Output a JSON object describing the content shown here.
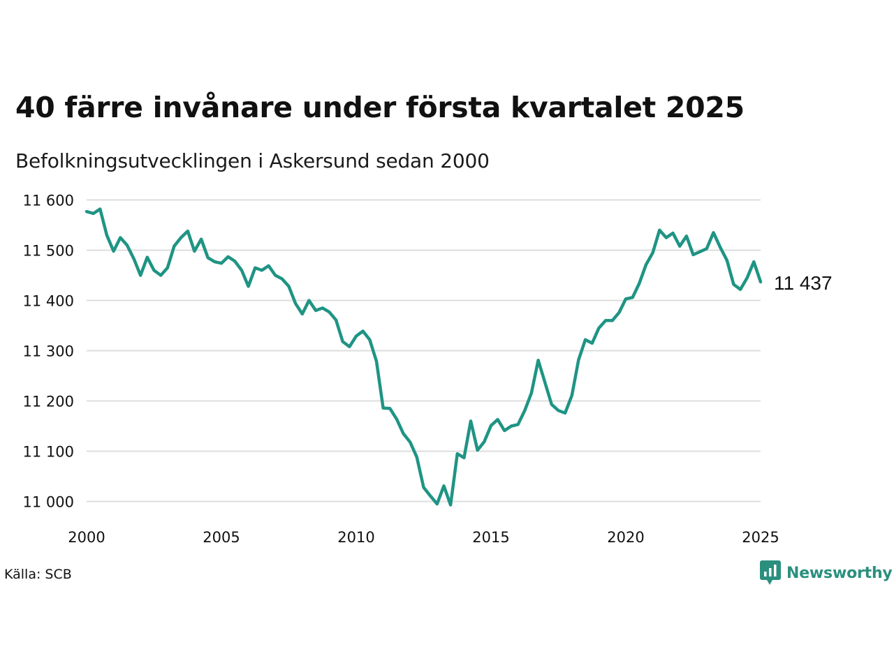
{
  "title": "40 färre invånare under första kvartalet 2025",
  "subtitle": "Befolkningsutvecklingen i Askersund sedan 2000",
  "source": "Källa: SCB",
  "brand": {
    "name": "Newsworthy",
    "icon": "newsworthy-logo-icon",
    "color": "#2b8f7e"
  },
  "chart_data": {
    "type": "line",
    "title": "40 färre invånare under första kvartalet 2025",
    "subtitle": "Befolkningsutvecklingen i Askersund sedan 2000",
    "xlabel": "",
    "ylabel": "",
    "xlim": [
      2000,
      2025
    ],
    "ylim": [
      11000,
      11600
    ],
    "x_ticks": [
      2000,
      2005,
      2010,
      2015,
      2020,
      2025
    ],
    "x_tick_labels": [
      "2000",
      "2005",
      "2010",
      "2015",
      "2020",
      "2025"
    ],
    "y_ticks": [
      11000,
      11100,
      11200,
      11300,
      11400,
      11500,
      11600
    ],
    "y_tick_labels": [
      "11 000",
      "11 100",
      "11 200",
      "11 300",
      "11 400",
      "11 500",
      "11 600"
    ],
    "grid": "horizontal",
    "line_color": "#1f9484",
    "end_label": "11 437",
    "series": [
      {
        "x": [
          2000.0,
          2000.25,
          2000.5,
          2000.75,
          2001.0,
          2001.25,
          2001.5,
          2001.75,
          2002.0,
          2002.25,
          2002.5,
          2002.75,
          2003.0,
          2003.25,
          2003.5,
          2003.75,
          2004.0,
          2004.25,
          2004.5,
          2004.75,
          2005.0,
          2005.25,
          2005.5,
          2005.75,
          2006.0,
          2006.25,
          2006.5,
          2006.75,
          2007.0,
          2007.25,
          2007.5,
          2007.75,
          2008.0,
          2008.25,
          2008.5,
          2008.75,
          2009.0,
          2009.25,
          2009.5,
          2009.75,
          2010.0,
          2010.25,
          2010.5,
          2010.75,
          2011.0,
          2011.25,
          2011.5,
          2011.75,
          2012.0,
          2012.25,
          2012.5,
          2012.75,
          2013.0,
          2013.25,
          2013.5,
          2013.75,
          2014.0,
          2014.25,
          2014.5,
          2014.75,
          2015.0,
          2015.25,
          2015.5,
          2015.75,
          2016.0,
          2016.25,
          2016.5,
          2016.75,
          2017.0,
          2017.25,
          2017.5,
          2017.75,
          2018.0,
          2018.25,
          2018.5,
          2018.75,
          2019.0,
          2019.25,
          2019.5,
          2019.75,
          2020.0,
          2020.25,
          2020.5,
          2020.75,
          2021.0,
          2021.25,
          2021.5,
          2021.75,
          2022.0,
          2022.25,
          2022.5,
          2022.75,
          2023.0,
          2023.25,
          2023.5,
          2023.75,
          2024.0,
          2024.25,
          2024.5,
          2024.75,
          2025.0
        ],
        "values": [
          11577,
          11573,
          11582,
          11530,
          11498,
          11525,
          11510,
          11483,
          11450,
          11486,
          11460,
          11450,
          11465,
          11508,
          11525,
          11538,
          11498,
          11522,
          11485,
          11477,
          11474,
          11487,
          11478,
          11460,
          11428,
          11465,
          11460,
          11469,
          11450,
          11443,
          11428,
          11394,
          11373,
          11400,
          11380,
          11385,
          11377,
          11361,
          11318,
          11308,
          11329,
          11339,
          11322,
          11279,
          11186,
          11185,
          11164,
          11135,
          11118,
          11088,
          11028,
          11011,
          10995,
          11031,
          10993,
          11095,
          11087,
          11160,
          11102,
          11119,
          11151,
          11163,
          11141,
          11150,
          11153,
          11181,
          11216,
          11281,
          11237,
          11193,
          11181,
          11176,
          11211,
          11282,
          11322,
          11315,
          11345,
          11360,
          11360,
          11376,
          11403,
          11406,
          11434,
          11471,
          11495,
          11540,
          11525,
          11534,
          11508,
          11528,
          11491,
          11497,
          11503,
          11535,
          11506,
          11480,
          11432,
          11422,
          11445,
          11477,
          11437
        ]
      }
    ]
  }
}
